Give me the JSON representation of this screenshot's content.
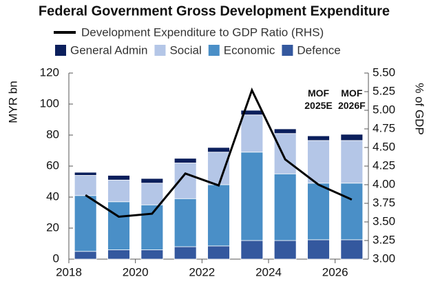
{
  "chart_data": {
    "type": "bar",
    "stacked": true,
    "title": "Federal Government Gross Development Expenditure",
    "ylabel": "MYR bn",
    "y2label": "% of GDP",
    "x": [
      2018.5,
      2019.5,
      2020.5,
      2021.5,
      2022.5,
      2023.5,
      2024.5,
      2025.5,
      2026.5
    ],
    "xlim": [
      2018,
      2027
    ],
    "xticks": [
      2018,
      2020,
      2022,
      2024,
      2026
    ],
    "ylim": [
      0,
      120
    ],
    "yticks": [
      0,
      20,
      40,
      60,
      80,
      100,
      120
    ],
    "y2lim": [
      3.0,
      5.5
    ],
    "y2ticks": [
      {
        "value": 3.0,
        "label": "3.00"
      },
      {
        "value": 3.25,
        "label": "3.25"
      },
      {
        "value": 3.5,
        "label": "3.50"
      },
      {
        "value": 3.75,
        "label": "3.75"
      },
      {
        "value": 4.0,
        "label": "4.00"
      },
      {
        "value": 4.25,
        "label": "4.25"
      },
      {
        "value": 4.5,
        "label": "4.50"
      },
      {
        "value": 4.75,
        "label": "4.75"
      },
      {
        "value": 5.0,
        "label": "5.00"
      },
      {
        "value": 5.25,
        "label": "5.25"
      },
      {
        "value": 5.5,
        "label": "5.50"
      }
    ],
    "grid": false,
    "series": [
      {
        "name": "Development Expenditure to GDP Ratio (RHS)",
        "type": "line",
        "axis": "y2",
        "color": "#000000",
        "values": [
          3.86,
          3.57,
          3.61,
          4.15,
          3.99,
          5.27,
          4.34,
          4.0,
          3.8
        ]
      },
      {
        "name": "General Admin",
        "color": "#0b1f5c",
        "values": [
          2,
          3,
          3,
          3,
          3,
          3,
          3,
          3,
          4
        ]
      },
      {
        "name": "Social",
        "color": "#b4c6e7",
        "values": [
          13,
          14,
          14,
          23,
          21,
          24,
          26,
          27.5,
          27.5
        ]
      },
      {
        "name": "Economic",
        "color": "#4a8fc7",
        "values": [
          36,
          31,
          29,
          31,
          39.5,
          57,
          43,
          36.5,
          36.5
        ]
      },
      {
        "name": "Defence",
        "color": "#34589e",
        "values": [
          5,
          6,
          6,
          8,
          8.5,
          12,
          12,
          12.5,
          12.5
        ]
      }
    ],
    "annotations": [
      {
        "lines": [
          "MOF",
          "2025E"
        ],
        "x": 2025.5
      },
      {
        "lines": [
          "MOF",
          "2026F"
        ],
        "x": 2026.5
      }
    ]
  }
}
